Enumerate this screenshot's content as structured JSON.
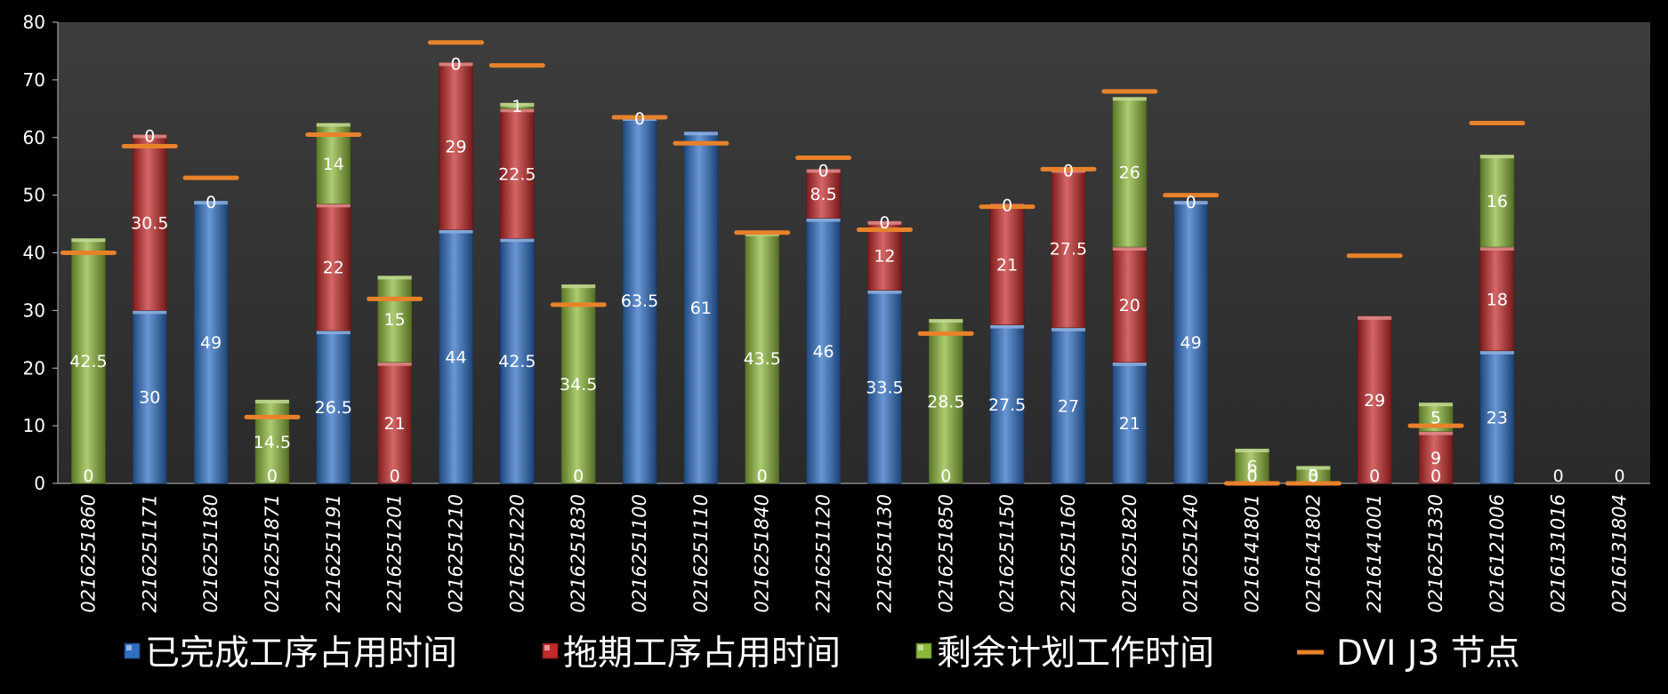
{
  "chart_data": {
    "type": "bar",
    "stacked": true,
    "title": "",
    "xlabel": "",
    "ylabel": "",
    "ylim": [
      0,
      80
    ],
    "yticks": [
      "0",
      "10",
      "20",
      "30",
      "40",
      "50",
      "60",
      "70",
      "80"
    ],
    "grid": false,
    "legend_position": "bottom",
    "categories": [
      "0216251860",
      "2216251171",
      "0216251180",
      "0216251871",
      "2216251191",
      "2216251201",
      "0216251210",
      "0216251220",
      "0216251830",
      "0216251100",
      "0216251110",
      "0216251840",
      "2216251120",
      "2216251130",
      "0216251850",
      "0216251150",
      "2216251160",
      "0216251820",
      "0216251240",
      "0216141801",
      "0216141802",
      "2216141001",
      "0216251330",
      "0216121006",
      "0216131016",
      "0216131804"
    ],
    "series": [
      {
        "name": "已完成工序占用时间",
        "color": "#2f6fc4",
        "values": [
          0,
          30,
          49,
          0,
          26.5,
          0,
          44,
          42.5,
          0,
          63.5,
          61,
          0,
          46,
          33.5,
          0,
          27.5,
          27,
          21,
          49,
          0,
          0,
          0,
          0,
          23,
          0,
          0
        ],
        "labels": [
          "0",
          "30",
          "49",
          "0",
          "26.5",
          "0",
          "44",
          "42.5",
          "0",
          "63.5",
          "61",
          "0",
          "46",
          "33.5",
          "0",
          "27.5",
          "27",
          "21",
          "49",
          "0",
          "0",
          "0",
          "0",
          "23",
          "0",
          "0"
        ]
      },
      {
        "name": "拖期工序占用时间",
        "color": "#c42a2a",
        "values": [
          0,
          30.5,
          0,
          0,
          22,
          21,
          29,
          22.5,
          0,
          0,
          0,
          0,
          8.5,
          12,
          0,
          21,
          27.5,
          20,
          0,
          0,
          0,
          29,
          9,
          18,
          0,
          0
        ],
        "labels": [
          "",
          "30.5",
          "0",
          "",
          "22",
          "21",
          "29",
          "22.5",
          "",
          "0",
          "",
          "",
          "8.5",
          "12",
          "",
          "21",
          "27.5",
          "20",
          "0",
          "0",
          "0",
          "29",
          "9",
          "18",
          "",
          ""
        ]
      },
      {
        "name": "剩余计划工作时间",
        "color": "#8cb83a",
        "values": [
          42.5,
          0,
          0,
          14.5,
          14,
          15,
          0,
          1,
          34.5,
          0,
          0,
          43.5,
          0,
          0,
          28.5,
          0,
          0,
          26,
          0,
          6,
          3,
          0,
          5,
          16,
          0,
          0
        ],
        "labels": [
          "42.5",
          "0",
          "",
          "14.5",
          "14",
          "15",
          "0",
          "1",
          "34.5",
          "",
          "",
          "43.5",
          "0",
          "0",
          "28.5",
          "0",
          "0",
          "26",
          "",
          "6",
          "3",
          "",
          "5",
          "16",
          "",
          ""
        ]
      }
    ],
    "markers": {
      "name": "DVI  J3 节点",
      "color": "#e8822a",
      "values": [
        40,
        58.5,
        53,
        11.5,
        60.5,
        32,
        76.5,
        72.5,
        31,
        63.5,
        59,
        43.5,
        56.5,
        44,
        26,
        48,
        54.5,
        68,
        50,
        0,
        0,
        39.5,
        10,
        62.5,
        null,
        null
      ]
    },
    "legend": [
      {
        "label": "已完成工序占用时间",
        "kind": "box",
        "color": "#2f6fc4"
      },
      {
        "label": "拖期工序占用时间",
        "kind": "box",
        "color": "#c42a2a"
      },
      {
        "label": "剩余计划工作时间",
        "kind": "box",
        "color": "#8cb83a"
      },
      {
        "label": "DVI  J3 节点",
        "kind": "line",
        "color": "#e8822a"
      }
    ]
  }
}
